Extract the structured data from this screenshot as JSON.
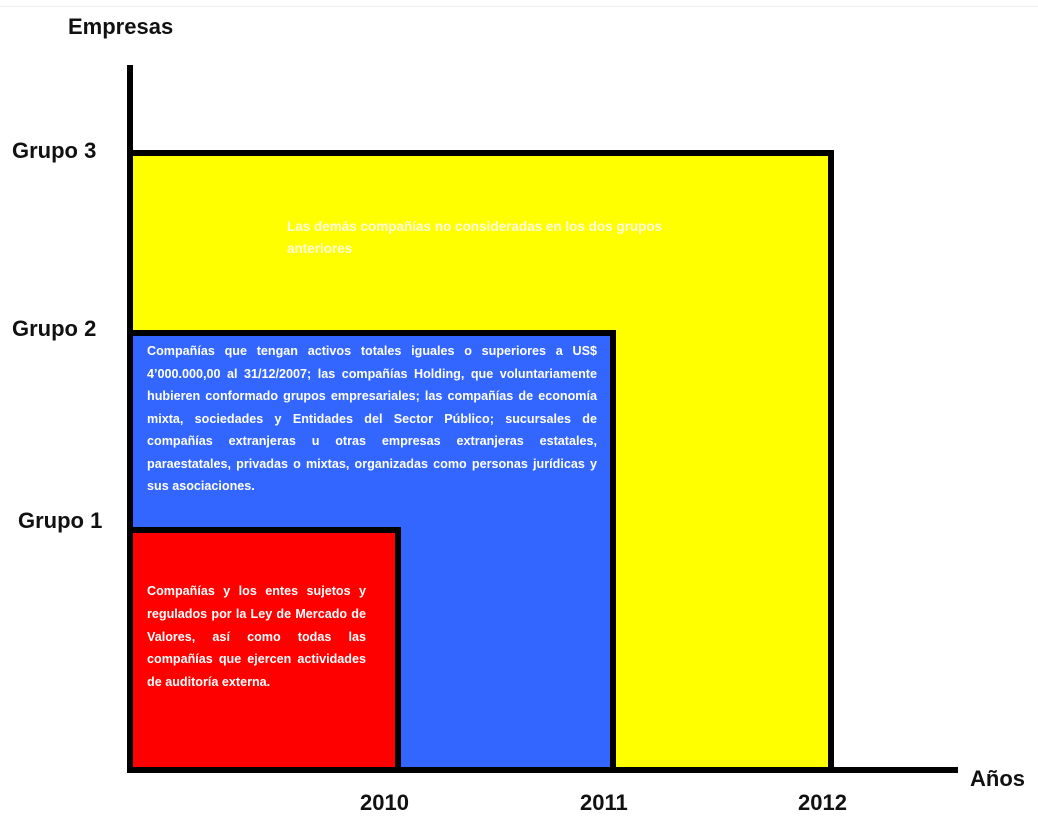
{
  "y_axis_label": "Empresas",
  "x_axis_label": "Años",
  "groups": [
    {
      "label": "Grupo 1",
      "year": "2010",
      "description": "Compañías y los entes sujetos y regulados por la Ley de Mercado de Valores, así como todas las compañías que ejercen actividades de auditoría externa."
    },
    {
      "label": "Grupo 2",
      "year": "2011",
      "description": "Compañías que tengan activos totales iguales o superiores a US$ 4’000.000,00 al 31/12/2007; las compañías Holding, que voluntariamente hubieren conformado grupos empresariales; las compañías de economía mixta, sociedades y Entidades del Sector Público; sucursales de compañías extranjeras u otras empresas extranjeras estatales, paraestatales, privadas o mixtas, organizadas como personas jurídicas y sus asociaciones."
    },
    {
      "label": "Grupo 3",
      "year": "2012",
      "description": "Las demás compañías no consideradas en los dos grupos anteriores"
    }
  ]
}
